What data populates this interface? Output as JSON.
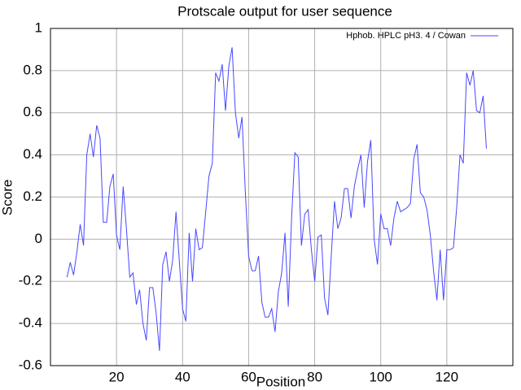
{
  "chart_data": {
    "type": "line",
    "title": "Protscale  output  for  user sequence",
    "x_label": "Position",
    "y_label": "Score",
    "x": [
      5,
      6,
      7,
      8,
      9,
      10,
      11,
      12,
      13,
      14,
      15,
      16,
      17,
      18,
      19,
      20,
      21,
      22,
      23,
      24,
      25,
      26,
      27,
      28,
      29,
      30,
      31,
      32,
      33,
      34,
      35,
      36,
      37,
      38,
      39,
      40,
      41,
      42,
      43,
      44,
      45,
      46,
      47,
      48,
      49,
      50,
      51,
      52,
      53,
      54,
      55,
      56,
      57,
      58,
      59,
      60,
      61,
      62,
      63,
      64,
      65,
      66,
      67,
      68,
      69,
      70,
      71,
      72,
      73,
      74,
      75,
      76,
      77,
      78,
      79,
      80,
      81,
      82,
      83,
      84,
      85,
      86,
      87,
      88,
      89,
      90,
      91,
      92,
      93,
      94,
      95,
      96,
      97,
      98,
      99,
      100,
      101,
      102,
      103,
      104,
      105,
      106,
      107,
      108,
      109,
      110,
      111,
      112,
      113,
      114,
      115,
      116,
      117,
      118,
      119,
      120,
      121,
      122,
      123,
      124,
      125,
      126,
      127,
      128,
      129,
      130,
      131,
      132
    ],
    "series": [
      {
        "name": "Hphob. HPLC  pH3. 4  / Cowan",
        "color": "#4848ff",
        "values": [
          -0.18,
          -0.11,
          -0.17,
          -0.06,
          0.07,
          -0.03,
          0.4,
          0.5,
          0.39,
          0.54,
          0.48,
          0.08,
          0.08,
          0.25,
          0.31,
          0.02,
          -0.05,
          0.25,
          0.05,
          -0.18,
          -0.16,
          -0.31,
          -0.24,
          -0.4,
          -0.48,
          -0.23,
          -0.23,
          -0.35,
          -0.53,
          -0.12,
          -0.06,
          -0.2,
          -0.1,
          0.13,
          -0.1,
          -0.33,
          -0.39,
          0.03,
          -0.2,
          0.05,
          -0.05,
          -0.04,
          0.13,
          0.3,
          0.36,
          0.79,
          0.75,
          0.83,
          0.61,
          0.82,
          0.91,
          0.6,
          0.48,
          0.58,
          0.22,
          -0.08,
          -0.15,
          -0.15,
          -0.08,
          -0.3,
          -0.37,
          -0.37,
          -0.33,
          -0.44,
          -0.25,
          -0.16,
          0.03,
          -0.32,
          0.1,
          0.41,
          0.39,
          -0.03,
          0.12,
          0.14,
          -0.05,
          -0.2,
          0.01,
          0.02,
          -0.28,
          -0.36,
          -0.08,
          0.18,
          0.05,
          0.1,
          0.24,
          0.24,
          0.1,
          0.25,
          0.33,
          0.4,
          0.15,
          0.37,
          0.47,
          0.0,
          -0.12,
          0.12,
          0.05,
          0.05,
          -0.03,
          0.1,
          0.18,
          0.13,
          0.14,
          0.15,
          0.17,
          0.38,
          0.45,
          0.22,
          0.2,
          0.14,
          0.02,
          -0.15,
          -0.29,
          -0.05,
          -0.29,
          -0.05,
          -0.05,
          -0.04,
          0.15,
          0.4,
          0.36,
          0.79,
          0.73,
          0.8,
          0.61,
          0.6,
          0.68,
          0.43
        ]
      }
    ],
    "xlim": [
      0,
      140
    ],
    "ylim": [
      -0.6,
      1
    ],
    "xticks": [
      20,
      40,
      60,
      80,
      100,
      120
    ],
    "yticks": [
      -0.6,
      -0.4,
      -0.2,
      0,
      0.2,
      0.4,
      0.6,
      0.8,
      1
    ],
    "grid": true,
    "legend": "upper right"
  }
}
